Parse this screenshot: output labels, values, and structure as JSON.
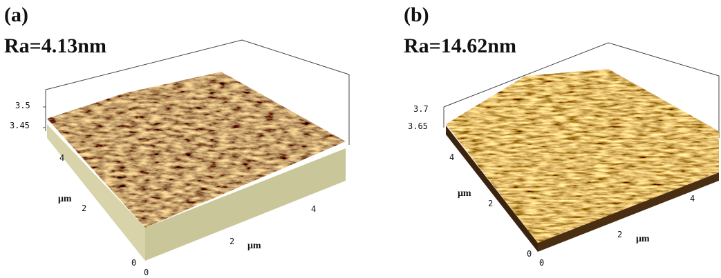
{
  "panels": [
    {
      "label": "(a)",
      "roughness": "Ra=4.13nm",
      "axis_labels": [
        "3.5",
        "3.45",
        "4",
        "μm",
        "2",
        "0",
        "0",
        "2",
        "μm",
        "4"
      ]
    },
    {
      "label": "(b)",
      "roughness": "Ra=14.62nm",
      "axis_labels": [
        "3.7",
        "3.65",
        "4",
        "μm",
        "2",
        "0",
        "0",
        "2",
        "μm",
        "4"
      ]
    }
  ]
}
